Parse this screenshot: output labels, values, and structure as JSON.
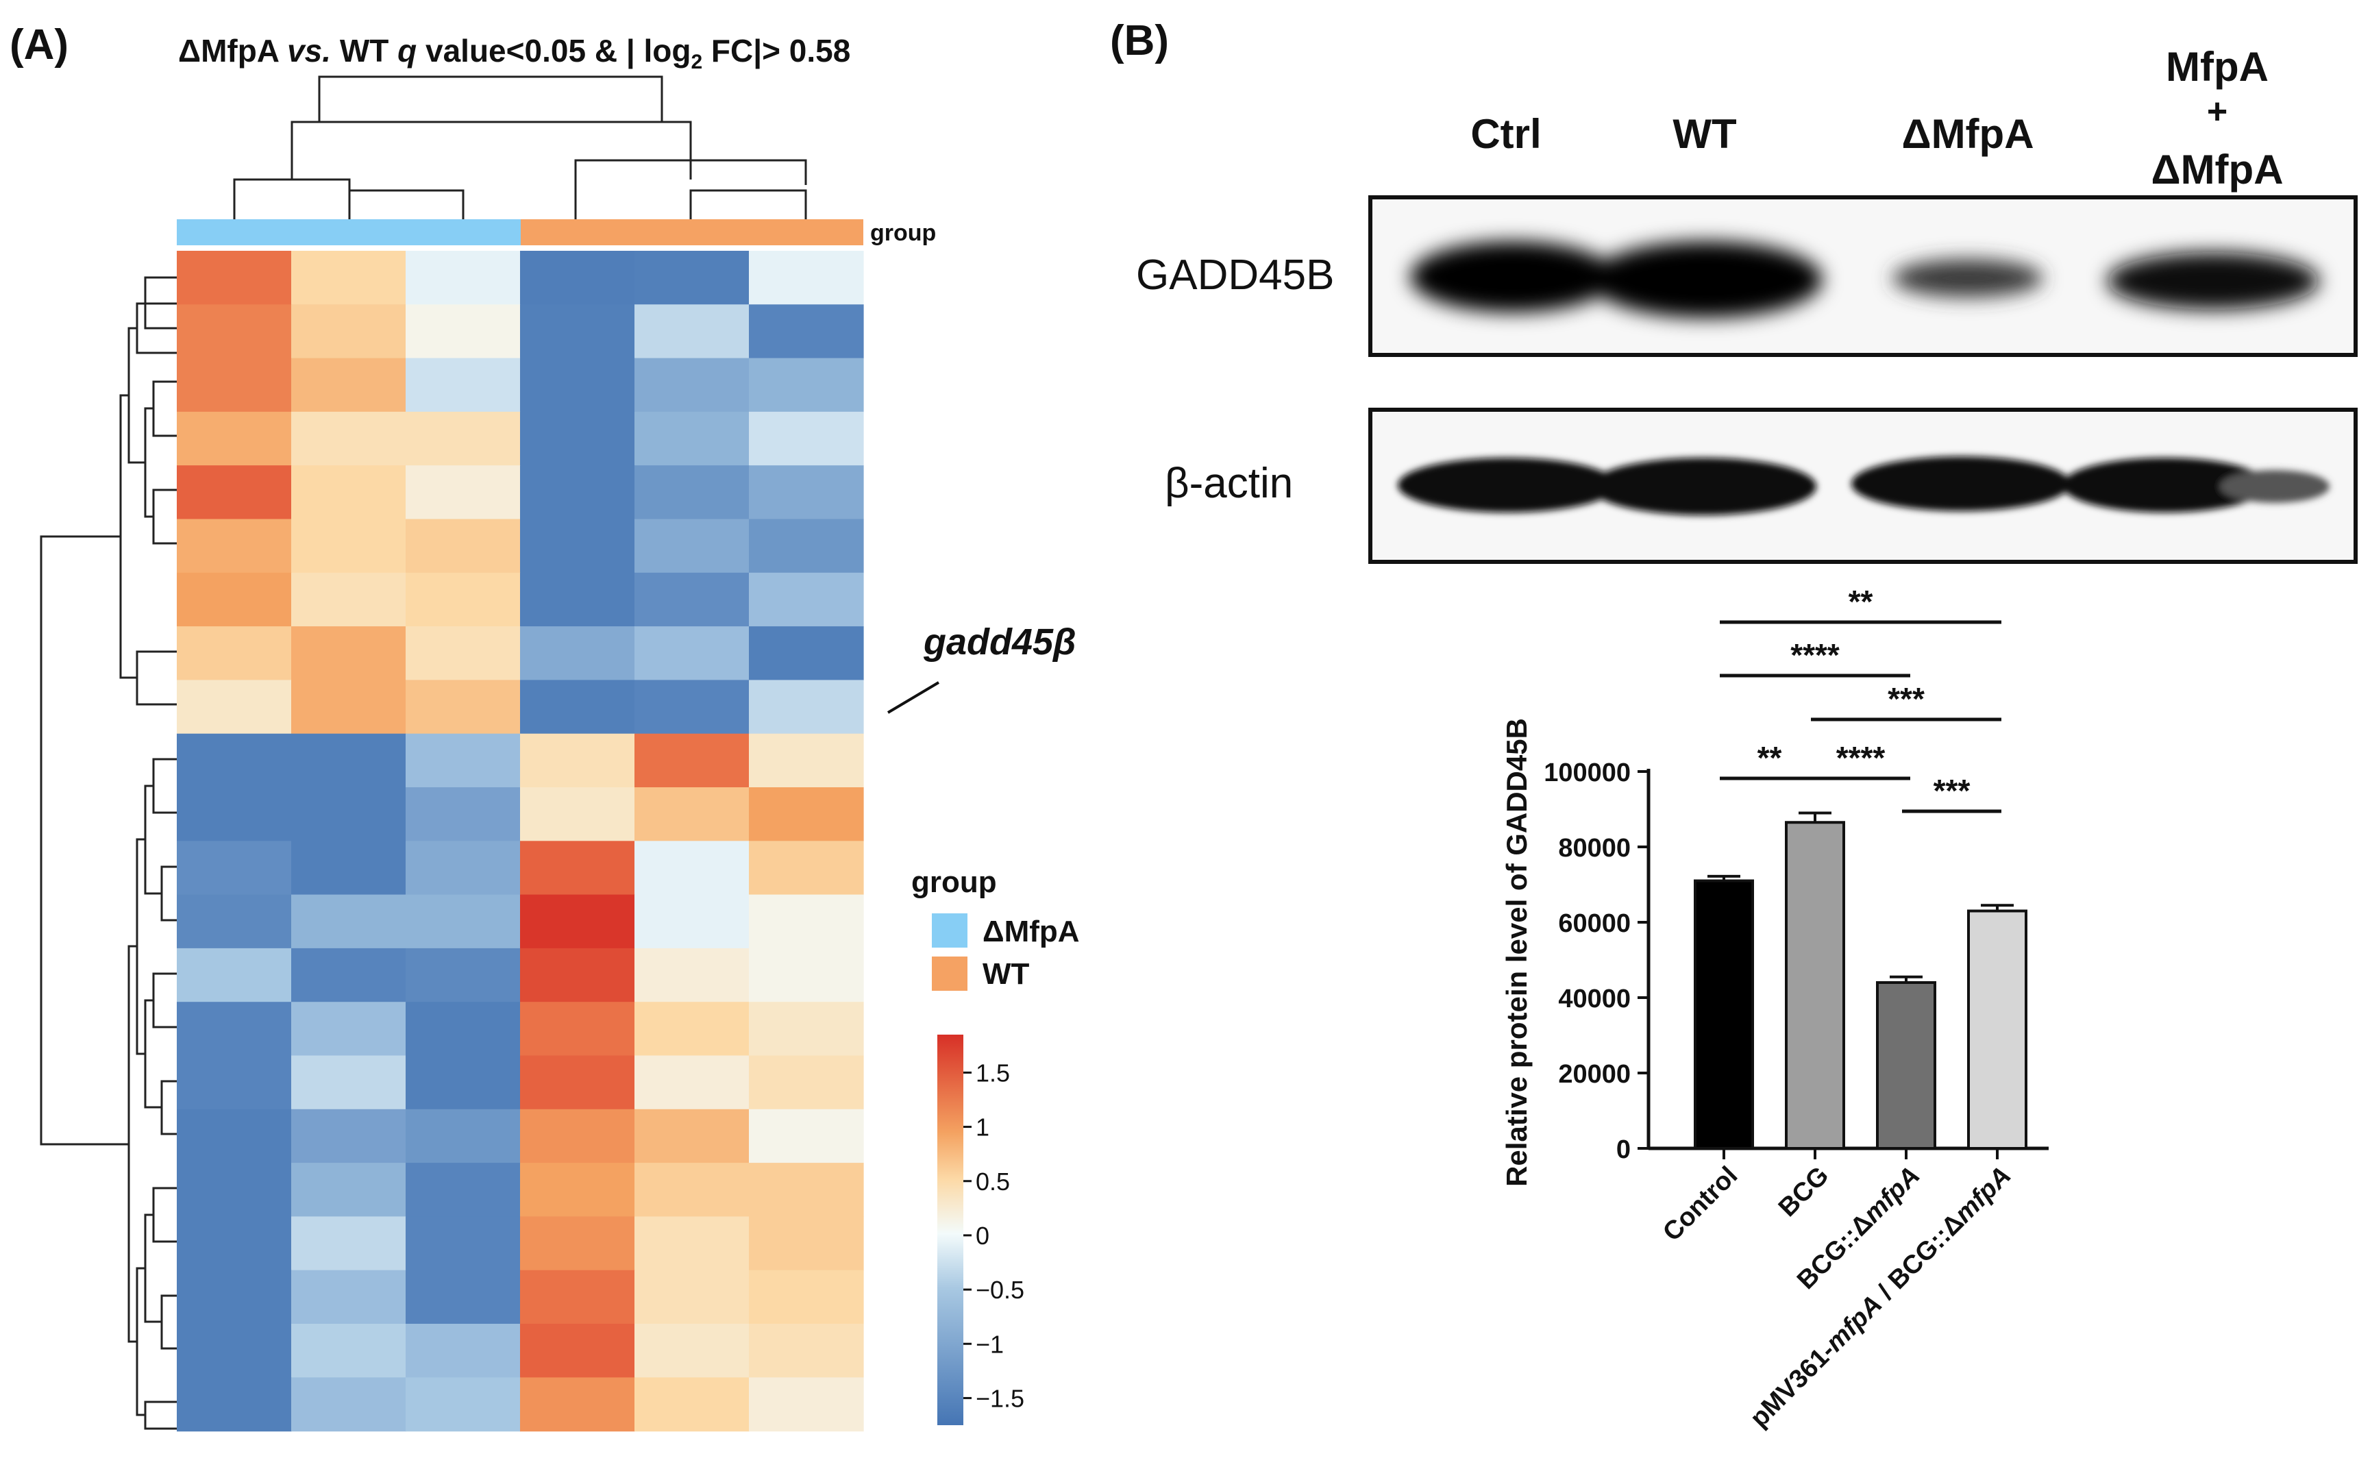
{
  "panel_a": {
    "panel_label": "(A)",
    "title": {
      "prefix": "ΔMfpA ",
      "vs": "vs.",
      "mid": " WT ",
      "q": "q",
      "cond": " value<0.05 & | log",
      "sub": "2",
      "tail": " FC|> 0.58"
    },
    "group_bar_label": "group",
    "annotation": "gadd45β",
    "legend": {
      "title": "group",
      "items": [
        {
          "label": "ΔMfpA",
          "color": "#87cef5"
        },
        {
          "label": "WT",
          "color": "#f5a263"
        }
      ]
    },
    "colorbar": {
      "ticks": [
        "1.5",
        "1",
        "0.5",
        "0",
        "−0.5",
        "−1",
        "−1.5"
      ],
      "tick_values": [
        1.5,
        1,
        0.5,
        0,
        -0.5,
        -1,
        -1.5
      ],
      "min": -1.75,
      "max": 1.85
    }
  },
  "panel_b": {
    "panel_label": "(B)",
    "lane_labels": [
      "Ctrl",
      "WT",
      "ΔMfpA",
      "MfpA",
      "+",
      "ΔMfpA"
    ],
    "blot_labels": [
      "GADD45B",
      "β-actin"
    ]
  },
  "chart_data": [
    {
      "type": "heatmap",
      "title": "ΔMfpA vs. WT q value<0.05 & | log2 FC|> 0.58",
      "columns": [
        "ΔMfpA",
        "ΔMfpA",
        "ΔMfpA",
        "WT",
        "WT",
        "WT"
      ],
      "column_groups": [
        "ΔMfpA",
        "ΔMfpA",
        "ΔMfpA",
        "WT",
        "WT",
        "WT"
      ],
      "highlighted_row": 8,
      "highlighted_label": "gadd45β",
      "values": [
        [
          1.3,
          0.5,
          -0.1,
          -1.55,
          -1.5,
          -0.1
        ],
        [
          1.2,
          0.6,
          0.1,
          -1.5,
          -0.4,
          -1.4
        ],
        [
          1.2,
          0.8,
          -0.3,
          -1.5,
          -0.9,
          -0.8
        ],
        [
          0.9,
          0.4,
          0.4,
          -1.5,
          -0.8,
          -0.3
        ],
        [
          1.4,
          0.5,
          0.2,
          -1.5,
          -1.1,
          -0.9
        ],
        [
          0.9,
          0.5,
          0.6,
          -1.5,
          -0.9,
          -1.1
        ],
        [
          1.0,
          0.4,
          0.5,
          -1.5,
          -1.2,
          -0.7
        ],
        [
          0.6,
          0.9,
          0.4,
          -0.9,
          -0.7,
          -1.5
        ],
        [
          0.3,
          0.9,
          0.7,
          -1.5,
          -1.4,
          -0.4
        ],
        [
          -1.5,
          -1.5,
          -0.7,
          0.4,
          1.3,
          0.3
        ],
        [
          -1.5,
          -1.5,
          -1.0,
          0.3,
          0.7,
          1.0
        ],
        [
          -1.2,
          -1.5,
          -0.9,
          1.4,
          -0.1,
          0.6
        ],
        [
          -1.3,
          -0.8,
          -0.8,
          1.8,
          -0.1,
          0.1
        ],
        [
          -0.6,
          -1.4,
          -1.3,
          1.6,
          0.2,
          0.1
        ],
        [
          -1.4,
          -0.7,
          -1.5,
          1.3,
          0.5,
          0.3
        ],
        [
          -1.4,
          -0.4,
          -1.5,
          1.4,
          0.2,
          0.4
        ],
        [
          -1.5,
          -1.0,
          -1.1,
          1.1,
          0.8,
          0.1
        ],
        [
          -1.5,
          -0.8,
          -1.4,
          1.0,
          0.6,
          0.6
        ],
        [
          -1.5,
          -0.4,
          -1.4,
          1.1,
          0.4,
          0.6
        ],
        [
          -1.5,
          -0.7,
          -1.4,
          1.3,
          0.4,
          0.5
        ],
        [
          -1.5,
          -0.5,
          -0.7,
          1.4,
          0.3,
          0.4
        ],
        [
          -1.5,
          -0.7,
          -0.6,
          1.1,
          0.5,
          0.2
        ]
      ],
      "colorscale": {
        "min": -1.75,
        "max": 1.85
      }
    },
    {
      "type": "bar",
      "categories": [
        "Control",
        "BCG",
        "BCG::ΔmfpA",
        "pMV361-mfpA / BCG::ΔmfpA"
      ],
      "values": [
        71000,
        86500,
        44000,
        63000
      ],
      "errors": [
        1200,
        2500,
        1500,
        1500
      ],
      "colors": [
        "#000000",
        "#9e9e9e",
        "#707070",
        "#d6d6d6"
      ],
      "xlabel": "",
      "ylabel": "Relative protein level of GADD45B",
      "yticks": [
        "0",
        "20000",
        "40000",
        "60000",
        "80000",
        "100000"
      ],
      "ylim": [
        0,
        100000
      ],
      "significance": [
        {
          "from": 0,
          "to": 1,
          "label": "**"
        },
        {
          "from": 1,
          "to": 2,
          "label": "****"
        },
        {
          "from": 2,
          "to": 3,
          "label": "***"
        },
        {
          "from": 1,
          "to": 3,
          "label": "***"
        },
        {
          "from": 0,
          "to": 2,
          "label": "****"
        },
        {
          "from": 0,
          "to": 3,
          "label": "**"
        }
      ]
    }
  ]
}
